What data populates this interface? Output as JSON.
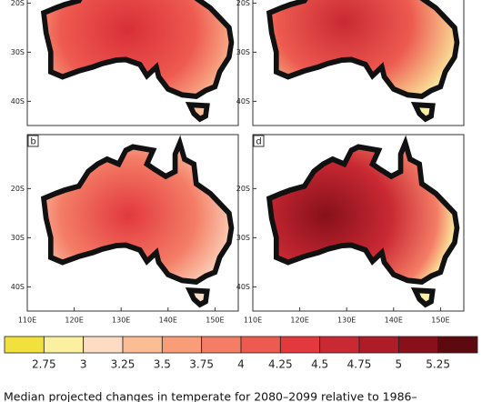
{
  "panels": [
    {
      "label": "b"
    },
    {
      "label": "d"
    }
  ],
  "lat_ticks": [
    "20S",
    "30S",
    "40S"
  ],
  "lon_ticks": [
    "110E",
    "120E",
    "130E",
    "140E",
    "150E"
  ],
  "colorbar": {
    "colors": [
      "#f2e13c",
      "#fbf0a0",
      "#fcdcc2",
      "#fbbd93",
      "#f89d78",
      "#f47d66",
      "#ed5a50",
      "#e2383e",
      "#c92933",
      "#ad1c27",
      "#87101a",
      "#5c0a0f"
    ],
    "ticks": [
      2.75,
      3,
      3.25,
      3.5,
      3.75,
      4,
      4.25,
      4.5,
      4.75,
      5,
      5.25
    ]
  },
  "caption": "Median projected changes in temperate for 2080–2099 relative to 1986–"
}
